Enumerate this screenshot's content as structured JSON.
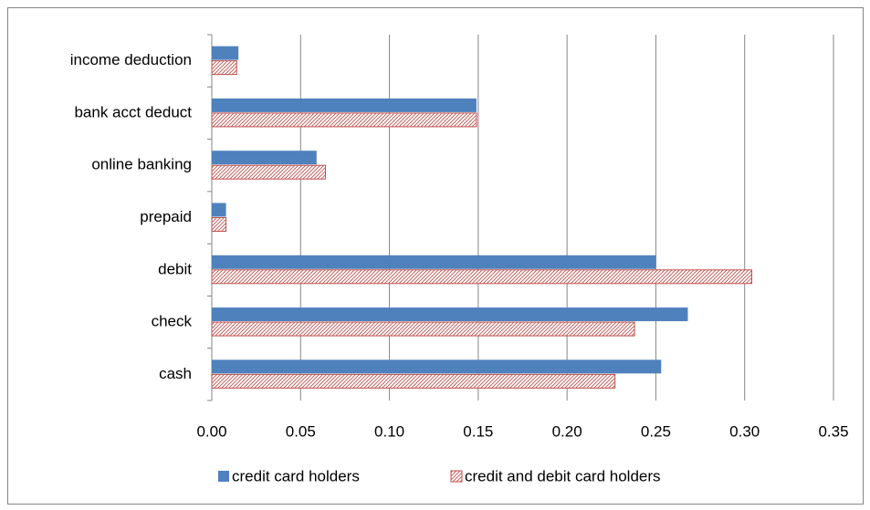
{
  "chart_data": {
    "type": "bar",
    "orientation": "horizontal",
    "categories": [
      "cash",
      "check",
      "debit",
      "prepaid",
      "online banking",
      "bank acct deduct",
      "income deduction"
    ],
    "series": [
      {
        "name": "credit card holders",
        "color": "#4f81bd",
        "values": [
          0.253,
          0.268,
          0.25,
          0.008,
          0.059,
          0.149,
          0.015
        ]
      },
      {
        "name": "credit and debit card holders",
        "color": "#c0504d",
        "hatch": true,
        "values": [
          0.227,
          0.238,
          0.304,
          0.008,
          0.064,
          0.149,
          0.014
        ]
      }
    ],
    "xlim": [
      0,
      0.35
    ],
    "xticks": [
      {
        "value": 0,
        "label": "0.00"
      },
      {
        "value": 0.05,
        "label": "0.05"
      },
      {
        "value": 0.1,
        "label": "0.10"
      },
      {
        "value": 0.15,
        "label": "0.15"
      },
      {
        "value": 0.2,
        "label": "0.20"
      },
      {
        "value": 0.25,
        "label": "0.25"
      },
      {
        "value": 0.3,
        "label": "0.30"
      },
      {
        "value": 0.35,
        "label": "0.35"
      }
    ],
    "grid": true,
    "legend": "bottom"
  }
}
